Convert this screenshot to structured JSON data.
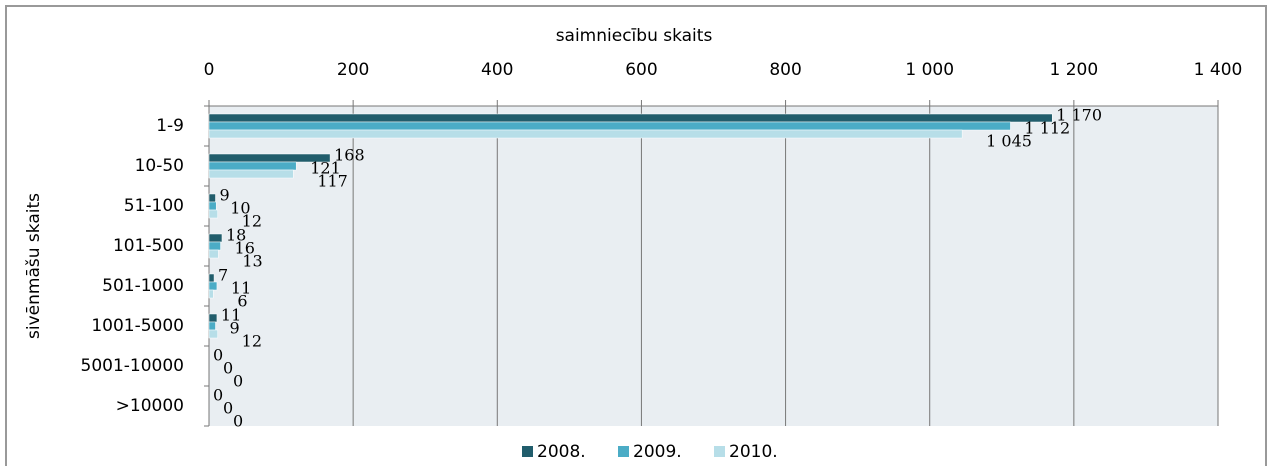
{
  "chart_data": {
    "type": "bar",
    "orientation": "horizontal",
    "xlabel": "saimniecību skaits",
    "ylabel": "sivēnmāšu skaits",
    "categories": [
      "1-9",
      "10-50",
      "51-100",
      "101-500",
      "501-1000",
      "1001-5000",
      "5001-10000",
      ">10000"
    ],
    "series": [
      {
        "name": "2008.",
        "color": "#215d6c",
        "values": [
          1170,
          168,
          9,
          18,
          7,
          11,
          0,
          0
        ],
        "value_labels": [
          "1 170",
          "168",
          "9",
          "18",
          "7",
          "11",
          "0",
          "0"
        ]
      },
      {
        "name": "2009.",
        "color": "#4bacc6",
        "values": [
          1112,
          121,
          10,
          16,
          11,
          9,
          0,
          0
        ],
        "value_labels": [
          "1 112",
          "121",
          "10",
          "16",
          "11",
          "9",
          "0",
          "0"
        ]
      },
      {
        "name": "2010.",
        "color": "#b7dee8",
        "values": [
          1045,
          117,
          12,
          13,
          6,
          12,
          0,
          0
        ],
        "value_labels": [
          "1 045",
          "117",
          "12",
          "13",
          "6",
          "12",
          "0",
          "0"
        ]
      }
    ],
    "xlim": [
      0,
      1400
    ],
    "xticks": [
      0,
      200,
      400,
      600,
      800,
      {
        "value": 1000,
        "label": "1 000"
      },
      {
        "value": 1200,
        "label": "1 200"
      },
      {
        "value": 1400,
        "label": "1 400"
      }
    ],
    "grid": true,
    "legend": "bottom"
  }
}
